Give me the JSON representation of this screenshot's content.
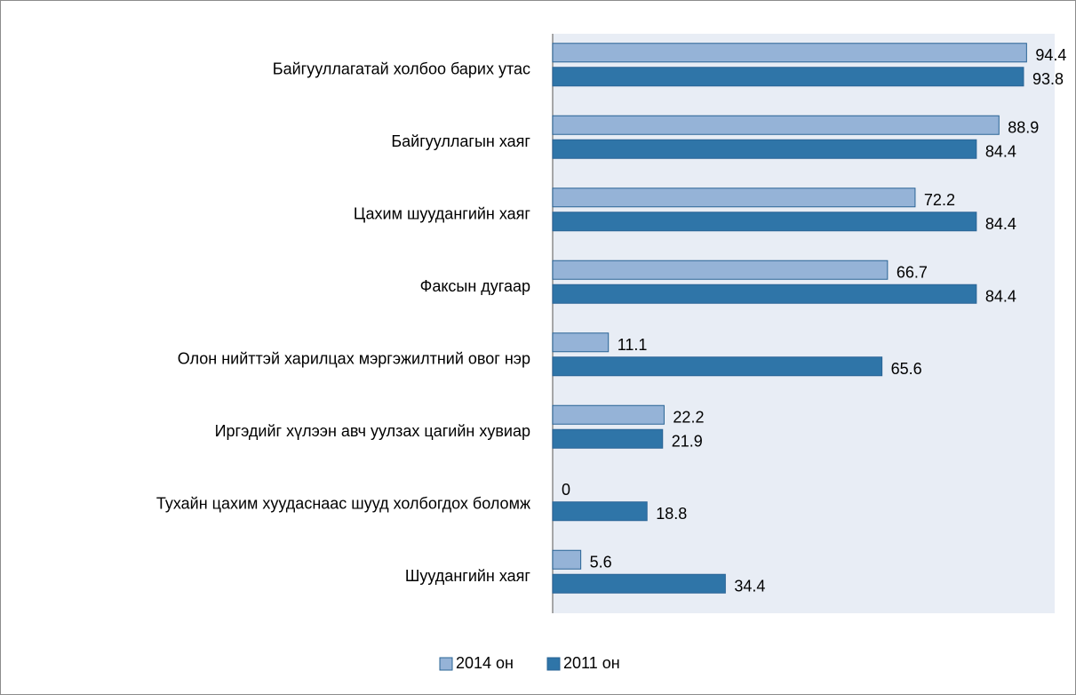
{
  "chart_data": {
    "type": "hbar",
    "categories": [
      "Байгууллагатай холбоо барих утас",
      "Байгууллагын хаяг",
      "Цахим шуудангийн хаяг",
      "Факсын дугаар",
      "Олон нийттэй харилцах мэргэжилтний овог нэр",
      "Иргэдийг хүлээн авч уулзах цагийн хувиар",
      "Тухайн цахим хуудаснаас шууд холбогдох боломж",
      "Шуудангийн хаяг"
    ],
    "series": [
      {
        "name": "2014 он",
        "color": "#95b3d7",
        "values": [
          94.4,
          88.9,
          72.2,
          66.7,
          11.1,
          22.2,
          0,
          5.6
        ]
      },
      {
        "name": "2011 он",
        "color": "#2f75a8",
        "values": [
          93.8,
          84.4,
          84.4,
          84.4,
          65.6,
          21.9,
          18.8,
          34.4
        ]
      }
    ],
    "xlim": [
      0,
      100
    ],
    "legend": "bottom"
  }
}
